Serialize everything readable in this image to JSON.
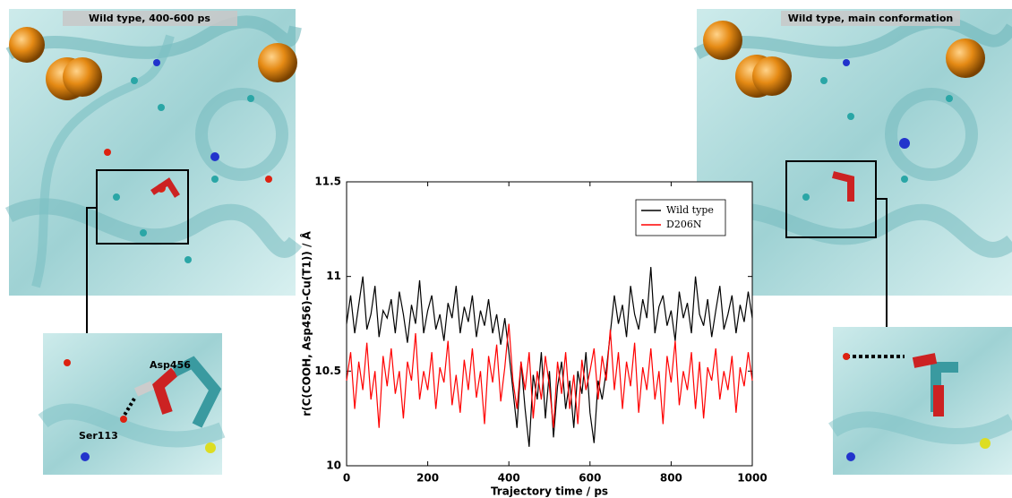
{
  "panels": {
    "left_title": "Wild type, 400-600 ps",
    "right_title": "Wild type, main conformation",
    "left_inset_labels": [
      "Asp456",
      "Ser113"
    ]
  },
  "chart_data": {
    "type": "line",
    "xlabel": "Trajectory time / ps",
    "ylabel": "r(C(COOH, Asp456)-Cu(T1)) / Å",
    "xlim": [
      0,
      1000
    ],
    "xticks": [
      0,
      200,
      400,
      600,
      800,
      1000
    ],
    "ylim": [
      10,
      11.5
    ],
    "yticks": [
      10,
      10.5,
      11,
      11.5
    ],
    "legend": "upper right",
    "x": [
      0,
      10,
      20,
      30,
      40,
      50,
      60,
      70,
      80,
      90,
      100,
      110,
      120,
      130,
      140,
      150,
      160,
      170,
      180,
      190,
      200,
      210,
      220,
      230,
      240,
      250,
      260,
      270,
      280,
      290,
      300,
      310,
      320,
      330,
      340,
      350,
      360,
      370,
      380,
      390,
      400,
      410,
      420,
      430,
      440,
      450,
      460,
      470,
      480,
      490,
      500,
      510,
      520,
      530,
      540,
      550,
      560,
      570,
      580,
      590,
      600,
      610,
      620,
      630,
      640,
      650,
      660,
      670,
      680,
      690,
      700,
      710,
      720,
      730,
      740,
      750,
      760,
      770,
      780,
      790,
      800,
      810,
      820,
      830,
      840,
      850,
      860,
      870,
      880,
      890,
      900,
      910,
      920,
      930,
      940,
      950,
      960,
      970,
      980,
      990,
      1000
    ],
    "series": [
      {
        "name": "Wild type",
        "color": "#000000",
        "values": [
          10.75,
          10.9,
          10.7,
          10.85,
          11.0,
          10.72,
          10.8,
          10.95,
          10.68,
          10.82,
          10.78,
          10.88,
          10.7,
          10.92,
          10.8,
          10.65,
          10.85,
          10.75,
          10.98,
          10.7,
          10.82,
          10.9,
          10.72,
          10.8,
          10.66,
          10.86,
          10.78,
          10.95,
          10.7,
          10.84,
          10.76,
          10.9,
          10.68,
          10.82,
          10.74,
          10.88,
          10.7,
          10.8,
          10.64,
          10.78,
          10.6,
          10.4,
          10.2,
          10.55,
          10.3,
          10.1,
          10.48,
          10.35,
          10.6,
          10.25,
          10.5,
          10.15,
          10.42,
          10.55,
          10.3,
          10.45,
          10.2,
          10.5,
          10.38,
          10.6,
          10.28,
          10.12,
          10.45,
          10.35,
          10.5,
          10.7,
          10.9,
          10.75,
          10.85,
          10.68,
          10.95,
          10.8,
          10.72,
          10.88,
          10.78,
          11.05,
          10.7,
          10.84,
          10.9,
          10.74,
          10.82,
          10.66,
          10.92,
          10.78,
          10.86,
          10.7,
          11.0,
          10.8,
          10.74,
          10.88,
          10.68,
          10.82,
          10.95,
          10.72,
          10.8,
          10.9,
          10.7,
          10.85,
          10.76,
          10.92,
          10.78
        ]
      },
      {
        "name": "D206N",
        "color": "#ff0000",
        "values": [
          10.45,
          10.6,
          10.3,
          10.55,
          10.4,
          10.65,
          10.35,
          10.5,
          10.2,
          10.58,
          10.42,
          10.62,
          10.38,
          10.5,
          10.25,
          10.55,
          10.45,
          10.7,
          10.35,
          10.5,
          10.4,
          10.6,
          10.3,
          10.52,
          10.44,
          10.66,
          10.32,
          10.48,
          10.28,
          10.56,
          10.4,
          10.62,
          10.36,
          10.5,
          10.22,
          10.58,
          10.44,
          10.64,
          10.34,
          10.52,
          10.75,
          10.45,
          10.3,
          10.55,
          10.4,
          10.6,
          10.25,
          10.5,
          10.35,
          10.58,
          10.42,
          10.2,
          10.55,
          10.38,
          10.6,
          10.3,
          10.48,
          10.22,
          10.56,
          10.4,
          10.5,
          10.62,
          10.35,
          10.58,
          10.45,
          10.72,
          10.4,
          10.6,
          10.3,
          10.55,
          10.42,
          10.65,
          10.28,
          10.52,
          10.4,
          10.62,
          10.35,
          10.5,
          10.22,
          10.58,
          10.44,
          10.66,
          10.32,
          10.5,
          10.4,
          10.6,
          10.3,
          10.55,
          10.25,
          10.52,
          10.45,
          10.62,
          10.35,
          10.5,
          10.4,
          10.58,
          10.28,
          10.52,
          10.42,
          10.6,
          10.45
        ]
      }
    ]
  }
}
